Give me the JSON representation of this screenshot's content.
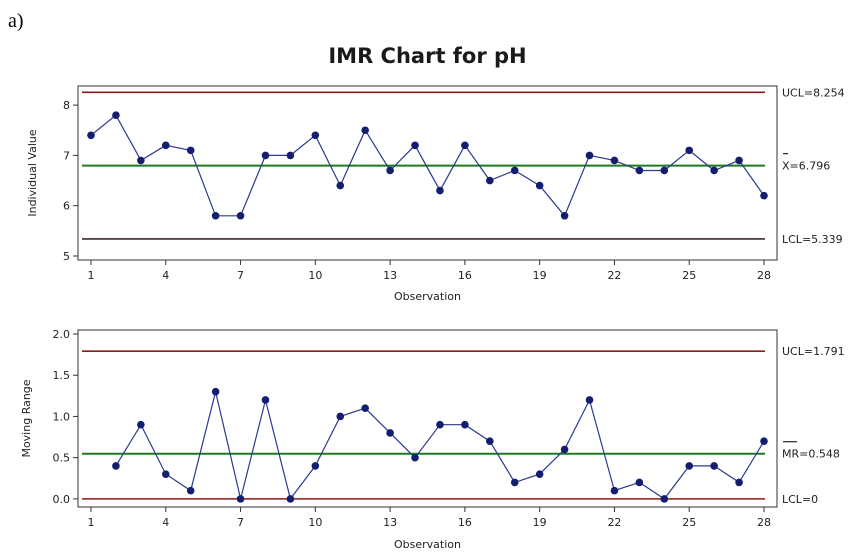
{
  "panel_label": "a)",
  "title": "IMR Chart for pH",
  "colors": {
    "ucl": "#8b1a1a",
    "lcl_i": "#3a2a2a",
    "lcl_mr": "#8b1a1a",
    "center": "#1e7a1e",
    "series_line": "#2b3a8c",
    "series_point": "#141e70"
  },
  "chart_data": [
    {
      "type": "line",
      "name": "individual",
      "title": "",
      "xlabel": "Observation",
      "ylabel": "Individual Value",
      "xlim": [
        1,
        28
      ],
      "ylim": [
        5,
        8.3
      ],
      "x_ticks": [
        1,
        4,
        7,
        10,
        13,
        16,
        19,
        22,
        25,
        28
      ],
      "y_ticks": [
        5,
        6,
        7,
        8
      ],
      "x": [
        1,
        2,
        3,
        4,
        5,
        6,
        7,
        8,
        9,
        10,
        11,
        12,
        13,
        14,
        15,
        16,
        17,
        18,
        19,
        20,
        21,
        22,
        23,
        24,
        25,
        26,
        27,
        28
      ],
      "values": [
        7.4,
        7.8,
        6.9,
        7.2,
        7.1,
        5.8,
        5.8,
        7.0,
        7.0,
        7.4,
        6.4,
        7.5,
        6.7,
        7.2,
        6.3,
        7.2,
        6.5,
        6.7,
        6.4,
        5.8,
        7.0,
        6.9,
        6.7,
        6.7,
        7.1,
        6.7,
        6.9,
        6.2
      ],
      "ucl": 8.254,
      "center": 6.796,
      "lcl": 5.339,
      "ucl_label": "UCL=8.254",
      "center_label": "X=6.796",
      "lcl_label": "LCL=5.339",
      "grid": false
    },
    {
      "type": "line",
      "name": "moving-range",
      "title": "",
      "xlabel": "Observation",
      "ylabel": "Moving Range",
      "xlim": [
        1,
        28
      ],
      "ylim": [
        -0.05,
        2.0
      ],
      "x_ticks": [
        1,
        4,
        7,
        10,
        13,
        16,
        19,
        22,
        25,
        28
      ],
      "y_ticks": [
        0.0,
        0.5,
        1.0,
        1.5,
        2.0
      ],
      "y_tick_labels": [
        "0.0",
        "0.5",
        "1.0",
        "1.5",
        "2.0"
      ],
      "x": [
        2,
        3,
        4,
        5,
        6,
        7,
        8,
        9,
        10,
        11,
        12,
        13,
        14,
        15,
        16,
        17,
        18,
        19,
        20,
        21,
        22,
        23,
        24,
        25,
        26,
        27,
        28
      ],
      "values": [
        0.4,
        0.9,
        0.3,
        0.1,
        1.3,
        0.0,
        1.2,
        0.0,
        0.4,
        1.0,
        1.1,
        0.8,
        0.5,
        0.9,
        0.9,
        0.7,
        0.2,
        0.3,
        0.6,
        1.2,
        0.1,
        0.2,
        0.0,
        0.4,
        0.4,
        0.2,
        0.7
      ],
      "ucl": 1.791,
      "center": 0.548,
      "lcl": 0,
      "ucl_label": "UCL=1.791",
      "center_label": "MR=0.548",
      "lcl_label": "LCL=0",
      "grid": false
    }
  ]
}
